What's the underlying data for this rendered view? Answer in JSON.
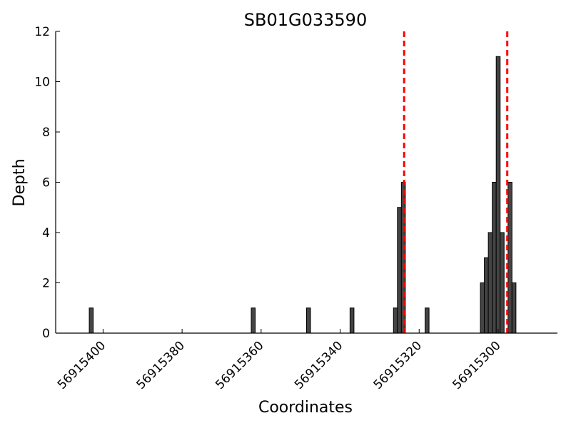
{
  "chart_data": {
    "type": "bar",
    "title": "SB01G033590",
    "xlabel": "Coordinates",
    "ylabel": "Depth",
    "x_reversed": true,
    "xlim": [
      56915412,
      56915285
    ],
    "ylim": [
      0,
      12
    ],
    "x_ticks": [
      56915400,
      56915380,
      56915360,
      56915340,
      56915320,
      56915300
    ],
    "y_ticks": [
      0,
      2,
      4,
      6,
      8,
      10,
      12
    ],
    "grid": false,
    "bars": [
      {
        "x": 56915403,
        "y": 1
      },
      {
        "x": 56915362,
        "y": 1
      },
      {
        "x": 56915348,
        "y": 1
      },
      {
        "x": 56915337,
        "y": 1
      },
      {
        "x": 56915326,
        "y": 1
      },
      {
        "x": 56915325,
        "y": 5
      },
      {
        "x": 56915324,
        "y": 6
      },
      {
        "x": 56915318,
        "y": 1
      },
      {
        "x": 56915304,
        "y": 2
      },
      {
        "x": 56915303,
        "y": 3
      },
      {
        "x": 56915302,
        "y": 4
      },
      {
        "x": 56915301,
        "y": 6
      },
      {
        "x": 56915300,
        "y": 11
      },
      {
        "x": 56915299,
        "y": 4
      },
      {
        "x": 56915297,
        "y": 6
      },
      {
        "x": 56915296,
        "y": 2
      }
    ],
    "markers": [
      56915323.8,
      56915297.7
    ],
    "colors": {
      "bars": "#444444",
      "markers": "#ff0000"
    }
  }
}
